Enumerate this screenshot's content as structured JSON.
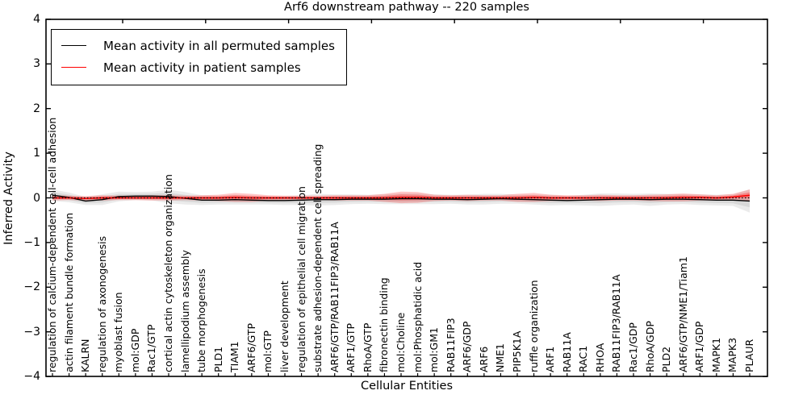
{
  "chart_data": {
    "type": "line",
    "title": "Arf6 downstream pathway -- 220 samples",
    "xlabel": "Cellular Entities",
    "ylabel": "Inferred Activity",
    "ylim": [
      -4,
      4
    ],
    "yticks": [
      "4",
      "3",
      "2",
      "1",
      "0",
      "−1",
      "−2",
      "−3",
      "−4"
    ],
    "ytick_values": [
      4,
      3,
      2,
      1,
      0,
      -1,
      -2,
      -3,
      -4
    ],
    "grid": false,
    "legend_position": "upper left",
    "legend": [
      {
        "label": "Mean activity in all permuted samples",
        "color": "#000000"
      },
      {
        "label": "Mean activity in patient samples",
        "color": "#ff0000"
      }
    ],
    "zero_line": {
      "value": 0,
      "style": "dotted",
      "color": "#000000"
    },
    "categories": [
      "regulation of calcium-dependent cell-cell adhesion",
      "actin filament bundle formation",
      "KALRN",
      "regulation of axonogenesis",
      "myoblast fusion",
      "mol:GDP",
      "Rac1/GTP",
      "cortical actin cytoskeleton organization",
      "lamellipodium assembly",
      "tube morphogenesis",
      "PLD1",
      "TIAM1",
      "ARF6/GTP",
      "mol:GTP",
      "liver development",
      "regulation of epithelial cell migration",
      "substrate adhesion-dependent cell spreading",
      "ARF6/GTP/RAB11FIP3/RAB11A",
      "ARF1/GTP",
      "RhoA/GTP",
      "fibronectin binding",
      "mol:Choline",
      "mol:Phosphatidic acid",
      "mol:GM1",
      "RAB11FIP3",
      "ARF6/GDP",
      "ARF6",
      "NME1",
      "PIP5K1A",
      "ruffle organization",
      "ARF1",
      "RAB11A",
      "RAC1",
      "RHOA",
      "RAB11FIP3/RAB11A",
      "Rac1/GDP",
      "RhoA/GDP",
      "PLD2",
      "ARF6/GTP/NME1/Tiam1",
      "ARF1/GDP",
      "MAPK1",
      "MAPK3",
      "PLAUR"
    ],
    "series": [
      {
        "name": "Mean activity in all permuted samples",
        "color": "#000000",
        "style": "solid",
        "values": [
          0.06,
          0.01,
          -0.07,
          -0.04,
          0.03,
          0.04,
          0.04,
          0.03,
          -0.01,
          -0.05,
          -0.05,
          -0.04,
          -0.05,
          -0.06,
          -0.06,
          -0.05,
          -0.04,
          -0.04,
          -0.03,
          -0.03,
          -0.03,
          -0.02,
          -0.02,
          -0.03,
          -0.03,
          -0.04,
          -0.03,
          -0.02,
          -0.03,
          -0.04,
          -0.05,
          -0.06,
          -0.05,
          -0.04,
          -0.03,
          -0.03,
          -0.04,
          -0.03,
          -0.03,
          -0.04,
          -0.05,
          -0.05,
          -0.07
        ]
      },
      {
        "name": "Mean activity in patient samples",
        "color": "#ff0000",
        "style": "solid",
        "values": [
          0.0,
          0.0,
          -0.01,
          0.0,
          0.0,
          0.0,
          0.0,
          0.0,
          0.0,
          0.0,
          0.0,
          0.01,
          0.0,
          0.0,
          0.0,
          0.0,
          0.0,
          0.0,
          0.0,
          0.0,
          0.0,
          0.01,
          0.01,
          0.0,
          0.0,
          0.0,
          0.0,
          0.0,
          0.0,
          0.01,
          0.0,
          0.0,
          0.0,
          0.0,
          0.0,
          0.0,
          0.0,
          0.0,
          0.01,
          0.01,
          0.0,
          0.02,
          0.06
        ]
      },
      {
        "name": "Permuted samples band (± est. std)",
        "color": "#d9d9d9",
        "type": "band",
        "half_widths": [
          0.13,
          0.11,
          0.09,
          0.12,
          0.11,
          0.09,
          0.1,
          0.15,
          0.14,
          0.11,
          0.1,
          0.11,
          0.1,
          0.09,
          0.1,
          0.11,
          0.13,
          0.12,
          0.11,
          0.1,
          0.11,
          0.12,
          0.12,
          0.11,
          0.1,
          0.11,
          0.12,
          0.11,
          0.1,
          0.11,
          0.12,
          0.1,
          0.12,
          0.14,
          0.13,
          0.12,
          0.14,
          0.12,
          0.11,
          0.12,
          0.12,
          0.13,
          0.26
        ]
      },
      {
        "name": "Patient samples band (± est. std)",
        "color": "#f28080",
        "type": "band",
        "half_widths": [
          0.06,
          0.05,
          0.05,
          0.06,
          0.05,
          0.05,
          0.06,
          0.06,
          0.05,
          0.06,
          0.07,
          0.1,
          0.09,
          0.06,
          0.05,
          0.05,
          0.05,
          0.06,
          0.06,
          0.06,
          0.09,
          0.13,
          0.12,
          0.07,
          0.06,
          0.07,
          0.06,
          0.06,
          0.09,
          0.1,
          0.07,
          0.06,
          0.06,
          0.07,
          0.06,
          0.06,
          0.07,
          0.08,
          0.09,
          0.07,
          0.06,
          0.07,
          0.13
        ]
      }
    ]
  }
}
